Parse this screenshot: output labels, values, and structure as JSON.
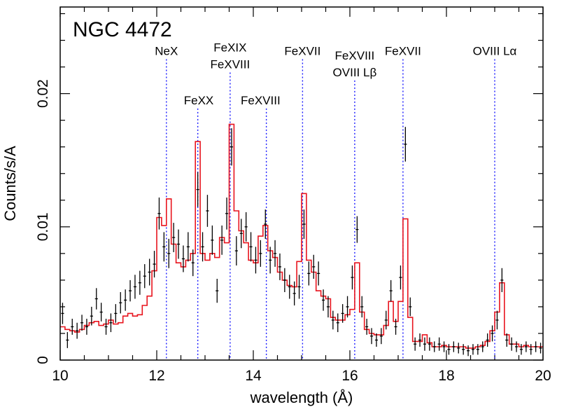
{
  "chart_data": {
    "type": "line",
    "title": "NGC 4472",
    "xlabel": "wavelength (Å)",
    "ylabel": "Counts/s/A",
    "xlim": [
      10,
      20
    ],
    "ylim": [
      0,
      0.0265
    ],
    "x_ticks": [
      10,
      12,
      14,
      16,
      18,
      20
    ],
    "x_tick_labels": [
      "10",
      "12",
      "14",
      "16",
      "18",
      "20"
    ],
    "y_ticks": [
      0,
      0.01,
      0.02
    ],
    "y_tick_labels": [
      "0",
      "0.01",
      "0.02"
    ],
    "grid": false,
    "line_markers": [
      {
        "x": 12.2,
        "lines": [
          "NeX"
        ],
        "label_x": 12.2,
        "label_top": 0.0229
      },
      {
        "x": 12.85,
        "lines": [
          "FeXX"
        ],
        "label_x": 12.87,
        "label_top": 0.0192
      },
      {
        "x": 13.52,
        "lines": [
          "FeXIX",
          "FeXVIII"
        ],
        "label_x": 13.52,
        "label_top": 0.0219
      },
      {
        "x": 14.27,
        "lines": [
          "FeXVIII"
        ],
        "label_x": 14.15,
        "label_top": 0.0192
      },
      {
        "x": 15.02,
        "lines": [
          "FeXVII"
        ],
        "label_x": 15.02,
        "label_top": 0.0229
      },
      {
        "x": 16.1,
        "lines": [
          "FeXVIII",
          "OVIII Lβ"
        ],
        "label_x": 16.1,
        "label_top": 0.0213
      },
      {
        "x": 17.1,
        "lines": [
          "FeXVII"
        ],
        "label_x": 17.1,
        "label_top": 0.0229
      },
      {
        "x": 19.0,
        "lines": [
          "OVIII Lα"
        ],
        "label_x": 19.0,
        "label_top": 0.0229
      }
    ],
    "series": [
      {
        "style": "data-crosses",
        "color": "#000000",
        "x": [
          10.05,
          10.15,
          10.25,
          10.35,
          10.45,
          10.55,
          10.65,
          10.75,
          10.85,
          10.95,
          11.05,
          11.15,
          11.25,
          11.35,
          11.45,
          11.55,
          11.65,
          11.75,
          11.85,
          11.95,
          12.05,
          12.15,
          12.25,
          12.35,
          12.45,
          12.55,
          12.65,
          12.75,
          12.85,
          12.95,
          13.05,
          13.15,
          13.25,
          13.35,
          13.45,
          13.55,
          13.65,
          13.75,
          13.85,
          13.95,
          14.05,
          14.15,
          14.25,
          14.35,
          14.45,
          14.55,
          14.65,
          14.75,
          14.85,
          14.95,
          15.05,
          15.15,
          15.25,
          15.35,
          15.45,
          15.55,
          15.65,
          15.75,
          15.85,
          15.95,
          16.05,
          16.15,
          16.25,
          16.35,
          16.45,
          16.55,
          16.65,
          16.75,
          16.85,
          16.95,
          17.05,
          17.15,
          17.25,
          17.35,
          17.45,
          17.55,
          17.65,
          17.75,
          17.85,
          17.95,
          18.05,
          18.15,
          18.25,
          18.35,
          18.45,
          18.55,
          18.65,
          18.75,
          18.85,
          18.95,
          19.05,
          19.15,
          19.25,
          19.35,
          19.45,
          19.55,
          19.65,
          19.75,
          19.85,
          19.95
        ],
        "y": [
          0.0035,
          0.0015,
          0.0025,
          0.0022,
          0.0028,
          0.0025,
          0.0033,
          0.0046,
          0.0036,
          0.0025,
          0.0028,
          0.0035,
          0.0043,
          0.0045,
          0.0052,
          0.0055,
          0.0058,
          0.0063,
          0.0066,
          0.0072,
          0.011,
          0.0085,
          0.008,
          0.0092,
          0.0087,
          0.0076,
          0.0085,
          0.0073,
          0.0128,
          0.0085,
          0.0112,
          0.009,
          0.0052,
          0.009,
          0.011,
          0.016,
          0.0082,
          0.0095,
          0.01,
          0.0085,
          0.0075,
          0.008,
          0.0102,
          0.0075,
          0.008,
          0.007,
          0.006,
          0.0055,
          0.005,
          0.0055,
          0.0102,
          0.0065,
          0.007,
          0.0065,
          0.0045,
          0.004,
          0.003,
          0.0028,
          0.0035,
          0.004,
          0.0062,
          0.0098,
          0.004,
          0.0025,
          0.0018,
          0.0015,
          0.0018,
          0.003,
          0.0052,
          0.0025,
          0.0062,
          0.0162,
          0.004,
          0.0012,
          0.0015,
          0.0012,
          0.0012,
          0.001,
          0.0012,
          0.001,
          0.0008,
          0.001,
          0.0009,
          0.0008,
          0.0007,
          0.0008,
          0.0008,
          0.001,
          0.0015,
          0.002,
          0.003,
          0.006,
          0.0015,
          0.0012,
          0.001,
          0.0008,
          0.001,
          0.0008,
          0.001,
          0.0009
        ],
        "y_err": [
          0.0008,
          0.0006,
          0.0006,
          0.0006,
          0.0006,
          0.0006,
          0.0007,
          0.0008,
          0.0007,
          0.0006,
          0.0007,
          0.0007,
          0.0008,
          0.0008,
          0.0008,
          0.0009,
          0.0009,
          0.0009,
          0.001,
          0.001,
          0.0012,
          0.0011,
          0.0011,
          0.0011,
          0.0011,
          0.001,
          0.0011,
          0.001,
          0.0013,
          0.0011,
          0.0012,
          0.0011,
          0.0009,
          0.0011,
          0.0012,
          0.0014,
          0.0011,
          0.0011,
          0.0011,
          0.0011,
          0.001,
          0.001,
          0.0011,
          0.001,
          0.001,
          0.001,
          0.0009,
          0.0009,
          0.0009,
          0.0009,
          0.0011,
          0.0009,
          0.0009,
          0.0009,
          0.0008,
          0.0008,
          0.0007,
          0.0007,
          0.0007,
          0.0008,
          0.0009,
          0.001,
          0.0008,
          0.0006,
          0.0006,
          0.0005,
          0.0006,
          0.0007,
          0.0008,
          0.0006,
          0.0009,
          0.0013,
          0.0007,
          0.0005,
          0.0005,
          0.0005,
          0.0005,
          0.0004,
          0.0005,
          0.0004,
          0.0004,
          0.0004,
          0.0004,
          0.0004,
          0.0004,
          0.0004,
          0.0004,
          0.0004,
          0.0005,
          0.0006,
          0.0007,
          0.0009,
          0.0005,
          0.0005,
          0.0004,
          0.0004,
          0.0004,
          0.0004,
          0.0004,
          0.0004
        ]
      },
      {
        "style": "model-histogram",
        "color": "#e8141e",
        "x": [
          10.05,
          10.15,
          10.25,
          10.35,
          10.45,
          10.55,
          10.65,
          10.75,
          10.85,
          10.95,
          11.05,
          11.15,
          11.25,
          11.35,
          11.45,
          11.55,
          11.65,
          11.75,
          11.85,
          11.95,
          12.05,
          12.15,
          12.25,
          12.35,
          12.45,
          12.55,
          12.65,
          12.75,
          12.85,
          12.95,
          13.05,
          13.15,
          13.25,
          13.35,
          13.45,
          13.55,
          13.65,
          13.75,
          13.85,
          13.95,
          14.05,
          14.15,
          14.25,
          14.35,
          14.45,
          14.55,
          14.65,
          14.75,
          14.85,
          14.95,
          15.05,
          15.15,
          15.25,
          15.35,
          15.45,
          15.55,
          15.65,
          15.75,
          15.85,
          15.95,
          16.05,
          16.15,
          16.25,
          16.35,
          16.45,
          16.55,
          16.65,
          16.75,
          16.85,
          16.95,
          17.05,
          17.15,
          17.25,
          17.35,
          17.45,
          17.55,
          17.65,
          17.75,
          17.85,
          17.95,
          18.05,
          18.15,
          18.25,
          18.35,
          18.45,
          18.55,
          18.65,
          18.75,
          18.85,
          18.95,
          19.05,
          19.15,
          19.25,
          19.35,
          19.45,
          19.55,
          19.65,
          19.75,
          19.85,
          19.95
        ],
        "y": [
          0.0025,
          0.0023,
          0.0022,
          0.0021,
          0.0023,
          0.0026,
          0.0028,
          0.0029,
          0.0026,
          0.0027,
          0.003,
          0.0027,
          0.0028,
          0.0033,
          0.0035,
          0.0033,
          0.0034,
          0.0041,
          0.0048,
          0.0067,
          0.0107,
          0.0101,
          0.0121,
          0.0087,
          0.0073,
          0.007,
          0.0075,
          0.008,
          0.0164,
          0.008,
          0.0075,
          0.008,
          0.0077,
          0.0092,
          0.0088,
          0.0177,
          0.0112,
          0.0097,
          0.0088,
          0.0075,
          0.0073,
          0.0093,
          0.0101,
          0.0082,
          0.0077,
          0.0066,
          0.006,
          0.0056,
          0.0055,
          0.0074,
          0.0125,
          0.0075,
          0.0066,
          0.0052,
          0.0048,
          0.0046,
          0.0032,
          0.003,
          0.003,
          0.0034,
          0.0038,
          0.0073,
          0.0036,
          0.0023,
          0.002,
          0.0019,
          0.0019,
          0.0026,
          0.0044,
          0.0029,
          0.0044,
          0.0106,
          0.0032,
          0.0014,
          0.0014,
          0.0019,
          0.0013,
          0.001,
          0.001,
          0.0011,
          0.001,
          0.001,
          0.001,
          0.001,
          0.0009,
          0.0009,
          0.001,
          0.0011,
          0.0014,
          0.0022,
          0.0036,
          0.0058,
          0.0019,
          0.0012,
          0.0012,
          0.001,
          0.0011,
          0.001,
          0.001,
          0.001
        ]
      }
    ]
  }
}
